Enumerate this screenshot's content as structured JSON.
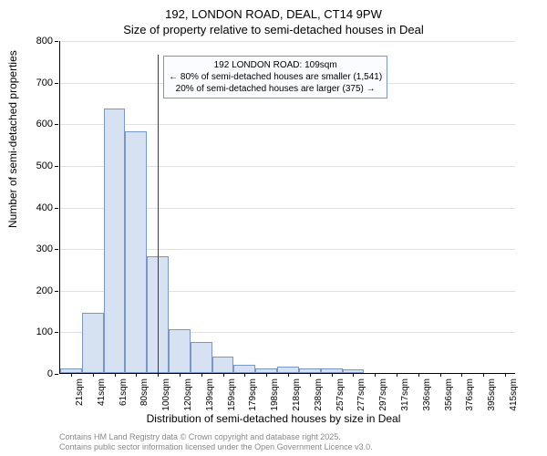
{
  "titles": {
    "main": "192, LONDON ROAD, DEAL, CT14 9PW",
    "sub": "Size of property relative to semi-detached houses in Deal"
  },
  "chart": {
    "type": "histogram",
    "background_color": "#ffffff",
    "grid_color": "#e0e0e0",
    "axis_color": "#000000",
    "bar_fill": "#d6e1f2",
    "bar_stroke": "#7a96c4",
    "ref_line_color": "#cc0000",
    "ylim": [
      0,
      800
    ],
    "ytick_step": 100,
    "yticks": [
      0,
      100,
      200,
      300,
      400,
      500,
      600,
      700,
      800
    ],
    "ylabel": "Number of semi-detached properties",
    "xlabel": "Distribution of semi-detached houses by size in Deal",
    "label_fontsize": 12,
    "tick_fontsize": 11,
    "categories": [
      "21sqm",
      "41sqm",
      "61sqm",
      "80sqm",
      "100sqm",
      "120sqm",
      "139sqm",
      "159sqm",
      "179sqm",
      "198sqm",
      "218sqm",
      "238sqm",
      "257sqm",
      "277sqm",
      "297sqm",
      "317sqm",
      "336sqm",
      "356sqm",
      "376sqm",
      "395sqm",
      "415sqm"
    ],
    "values": [
      10,
      145,
      635,
      580,
      280,
      105,
      75,
      40,
      20,
      12,
      15,
      12,
      10,
      8,
      0,
      0,
      0,
      0,
      0,
      0,
      0
    ],
    "bar_width_ratio": 1.0,
    "reference": {
      "position_index": 4,
      "annotation": {
        "line1": "192 LONDON ROAD: 109sqm",
        "line2": "← 80% of semi-detached houses are smaller (1,541)",
        "line3": "20% of semi-detached houses are larger (375) →",
        "box_border": "#7a96c4",
        "box_bg": "#fafcff",
        "fontsize": 10
      }
    }
  },
  "footer": {
    "line1": "Contains HM Land Registry data © Crown copyright and database right 2025.",
    "line2": "Contains public sector information licensed under the Open Government Licence v3.0.",
    "color": "#888888",
    "fontsize": 9
  }
}
